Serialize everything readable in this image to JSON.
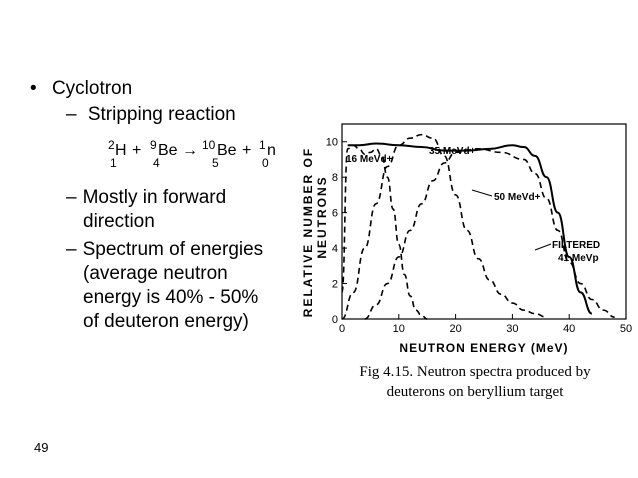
{
  "slide": {
    "bullet": "Cyclotron",
    "sub1": "Stripping reaction",
    "reaction": {
      "t1_sup": "2",
      "t1_sub": "1",
      "t1_sym": "H",
      "plus1": "+",
      "t2_sup": "9",
      "t2_sub": "4",
      "t2_sym": "Be",
      "arrow": "→",
      "t3_sup": "10",
      "t3_sub": "5",
      "t3_sym": "Be",
      "plus2": "+",
      "t4_sup": "1",
      "t4_sub": "0",
      "t4_sym": "n"
    },
    "sub2_line1": "Mostly in forward",
    "sub2_line2": "direction",
    "sub3_line1": "Spectrum of energies",
    "sub3_line2": "(average neutron",
    "sub3_line3": "energy is 40% - 50%",
    "sub3_line4": "of deuteron energy)",
    "caption_line1": "Fig 4.15. Neutron spectra produced by",
    "caption_line2": "deuterons on beryllium target",
    "page_number": "49"
  },
  "chart_data": {
    "type": "line",
    "xlabel": "NEUTRON ENERGY (MeV)",
    "ylabel_line1": "RELATIVE NUMBER OF",
    "ylabel_line2": "NEUTRONS",
    "xlim": [
      0,
      50
    ],
    "ylim": [
      0,
      11
    ],
    "x_ticks": [
      "0",
      "10",
      "20",
      "30",
      "40",
      "50"
    ],
    "y_ticks": [
      "0",
      "2",
      "4",
      "6",
      "8",
      "10"
    ],
    "annotations": [
      "16 MeVd+",
      "35 MeVd+",
      "50 MeVd+",
      "FILTERED",
      "41 MeVp"
    ],
    "series": [
      {
        "name": "16 MeVd+",
        "x": [
          0,
          1,
          2,
          3,
          4,
          5,
          6,
          7,
          8,
          9,
          10,
          11,
          12,
          13,
          14,
          15
        ],
        "y": [
          1.5,
          9.6,
          9.8,
          9.6,
          9.3,
          9.4,
          9.6,
          9.2,
          8.0,
          6.2,
          4.2,
          2.5,
          1.3,
          0.5,
          0.2,
          0.0
        ]
      },
      {
        "name": "35 MeVd+",
        "x": [
          0,
          2,
          4,
          6,
          8,
          10,
          12,
          14,
          16,
          18,
          20,
          22,
          24,
          26,
          28,
          30,
          32,
          34,
          36
        ],
        "y": [
          0.0,
          1.5,
          4.0,
          6.5,
          8.6,
          9.8,
          10.2,
          10.4,
          10.2,
          9.2,
          7.0,
          5.0,
          3.4,
          2.2,
          1.4,
          0.9,
          0.5,
          0.3,
          0.1
        ]
      },
      {
        "name": "50 MeVd+",
        "x": [
          4,
          6,
          8,
          10,
          12,
          14,
          16,
          18,
          20,
          24,
          28,
          32,
          34,
          36,
          38,
          40,
          42,
          44,
          46,
          48
        ],
        "y": [
          0.0,
          0.8,
          2.0,
          3.5,
          5.0,
          6.5,
          7.8,
          8.8,
          9.4,
          9.6,
          9.4,
          9.0,
          8.2,
          6.8,
          5.0,
          3.2,
          2.0,
          1.1,
          0.5,
          0.1
        ]
      },
      {
        "name": "FILTERED 41 MeVp",
        "x": [
          1,
          3,
          6,
          10,
          14,
          18,
          22,
          26,
          30,
          32,
          34,
          36,
          38,
          40,
          42,
          44
        ],
        "y": [
          9.8,
          9.8,
          9.9,
          9.8,
          9.7,
          9.5,
          9.5,
          9.6,
          9.8,
          9.7,
          9.2,
          8.0,
          6.0,
          3.5,
          1.5,
          0.3
        ]
      }
    ]
  }
}
